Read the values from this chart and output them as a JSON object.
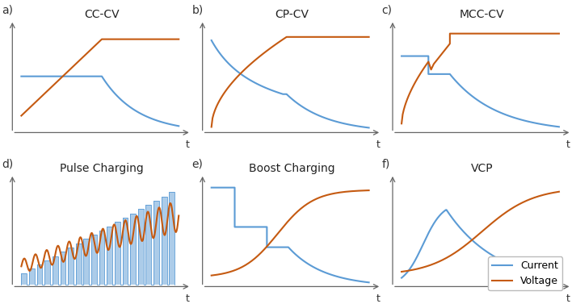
{
  "panels": [
    "a",
    "b",
    "c",
    "d",
    "e",
    "f"
  ],
  "titles": [
    "CC-CV",
    "CP-CV",
    "MCC-CV",
    "Pulse Charging",
    "Boost Charging",
    "VCP"
  ],
  "blue_color": "#5b9bd5",
  "orange_color": "#c55a11",
  "bg_color": "#ffffff",
  "legend_labels": [
    "Current",
    "Voltage"
  ],
  "figsize": [
    7.13,
    3.82
  ],
  "dpi": 100
}
